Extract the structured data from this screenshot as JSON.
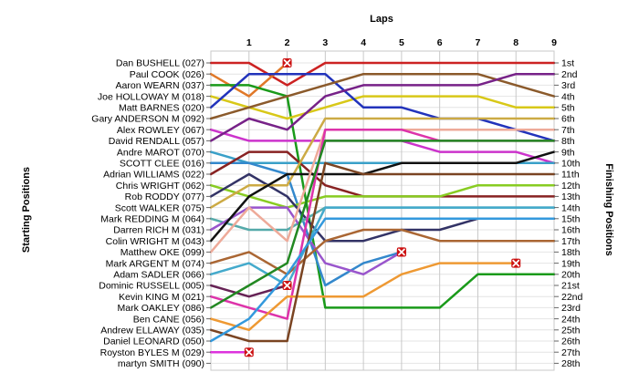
{
  "chart_data": {
    "type": "line",
    "title": "",
    "xlabel": "Laps",
    "ylabel_left": "Starting Positions",
    "ylabel_right": "Finishing Positions",
    "laps": [
      1,
      2,
      3,
      4,
      5,
      6,
      7,
      8,
      9
    ],
    "grid": true,
    "finish_labels": [
      "1st",
      "2nd",
      "3rd",
      "4th",
      "5th",
      "6th",
      "7th",
      "8th",
      "9th",
      "10th",
      "11th",
      "12th",
      "13th",
      "14th",
      "15th",
      "16th",
      "17th",
      "18th",
      "19th",
      "20th",
      "21st",
      "22nd",
      "23rd",
      "24th",
      "25th",
      "26th",
      "27th",
      "28th"
    ],
    "series": [
      {
        "name": "Dan BUSHELL (027)",
        "color": "#cc2222",
        "positions": [
          1,
          1,
          3,
          1,
          1,
          1,
          1,
          1,
          1,
          1
        ],
        "retired": false
      },
      {
        "name": "Paul COOK (026)",
        "color": "#e07828",
        "positions": [
          2,
          4,
          1
        ],
        "retired": true
      },
      {
        "name": "Aaron WEARN (037)",
        "color": "#1a9a1a",
        "positions": [
          3,
          3,
          4,
          23,
          23,
          23,
          23,
          20,
          20,
          20
        ],
        "retired": false
      },
      {
        "name": "Joe HOLLOWAY M (018)",
        "color": "#d8c818",
        "positions": [
          4,
          5,
          6,
          5,
          4,
          4,
          4,
          4,
          5,
          5
        ],
        "retired": false
      },
      {
        "name": "Matt BARNES (020)",
        "color": "#2233bb",
        "positions": [
          5,
          2,
          2,
          2,
          5,
          5,
          6,
          6,
          7,
          8
        ],
        "retired": false
      },
      {
        "name": "Gary ANDERSON M (092)",
        "color": "#8b5a2b",
        "positions": [
          6,
          5,
          4,
          3,
          2,
          2,
          2,
          2,
          3,
          4
        ],
        "retired": false
      },
      {
        "name": "Alex ROWLEY (067)",
        "color": "#cc33cc",
        "positions": [
          7,
          8,
          8,
          8,
          8,
          8,
          9,
          9,
          9,
          10
        ],
        "retired": false
      },
      {
        "name": "David RENDALL (057)",
        "color": "#772288",
        "positions": [
          8,
          6,
          7,
          4,
          3,
          3,
          3,
          3,
          2,
          2
        ],
        "retired": false
      },
      {
        "name": "Andre MAROT (070)",
        "color": "#3aa0c8",
        "positions": [
          9,
          10,
          10,
          10,
          10,
          10,
          10,
          10,
          10,
          10
        ],
        "retired": false
      },
      {
        "name": "SCOTT CLEE (016)",
        "color": "#3388cc",
        "positions": [
          10,
          10,
          11,
          21,
          19,
          18
        ],
        "retired": true
      },
      {
        "name": "Adrian WILLIAMS (022)",
        "color": "#882222",
        "positions": [
          11,
          9,
          9,
          12,
          13,
          13,
          13,
          13,
          13,
          13
        ],
        "retired": false
      },
      {
        "name": "Chris WRIGHT (062)",
        "color": "#88cc22",
        "positions": [
          12,
          13,
          14,
          13,
          13,
          13,
          13,
          12,
          12,
          12
        ],
        "retired": false
      },
      {
        "name": "Rob RODDY (077)",
        "color": "#333366",
        "positions": [
          13,
          11,
          13,
          17,
          17,
          16,
          16,
          15,
          15,
          15
        ],
        "retired": false
      },
      {
        "name": "Scott WALKER (075)",
        "color": "#ccaa44",
        "positions": [
          14,
          12,
          12,
          6,
          6,
          6,
          6,
          6,
          6,
          6
        ],
        "retired": false
      },
      {
        "name": "Mark REDDING M (064)",
        "color": "#55aaaa",
        "positions": [
          15,
          16,
          16,
          14,
          14,
          14,
          14,
          14,
          14,
          14
        ],
        "retired": false
      },
      {
        "name": "Darren RICH M (031)",
        "color": "#9955cc",
        "positions": [
          16,
          14,
          14,
          19,
          20,
          18
        ],
        "retired": true
      },
      {
        "name": "Colin WRIGHT M (043)",
        "color": "#111111",
        "positions": [
          17,
          13,
          11,
          11,
          11,
          10,
          10,
          10,
          10,
          9
        ],
        "retired": false
      },
      {
        "name": "Matthew OKE (099)",
        "color": "#eeaa99",
        "positions": [
          18,
          14,
          17,
          7,
          7,
          7,
          7,
          7,
          7,
          7
        ],
        "retired": false
      },
      {
        "name": "Mark ARGENT M (074)",
        "color": "#aa6633",
        "positions": [
          19,
          18,
          20,
          17,
          16,
          16,
          17,
          17,
          17,
          17
        ],
        "retired": false
      },
      {
        "name": "Adam SADLER (066)",
        "color": "#44aacc",
        "positions": [
          20,
          19,
          21,
          14,
          14,
          14,
          14,
          14,
          14,
          14
        ],
        "retired": false
      },
      {
        "name": "Dominic RUSSELL (005)",
        "color": "#662255",
        "positions": [
          21,
          22,
          21
        ],
        "retired": true
      },
      {
        "name": "Kevin KING M (021)",
        "color": "#dd33aa",
        "positions": [
          22,
          23,
          24,
          7,
          7,
          7,
          8,
          8,
          8,
          8
        ],
        "retired": false
      },
      {
        "name": "Mark OAKLEY (086)",
        "color": "#228822",
        "positions": [
          23,
          21,
          19,
          8,
          8,
          8,
          8,
          8,
          8,
          8
        ],
        "retired": false
      },
      {
        "name": "Ben CANE (056)",
        "color": "#ee9933",
        "positions": [
          24,
          25,
          22,
          22,
          22,
          20,
          19,
          19,
          19
        ],
        "retired": true
      },
      {
        "name": "Andrew ELLAWAY (035)",
        "color": "#7a4422",
        "positions": [
          25,
          26,
          26,
          10,
          11,
          11,
          11,
          11,
          11,
          11
        ],
        "retired": false
      },
      {
        "name": "Daniel LEONARD (050)",
        "color": "#3399dd",
        "positions": [
          26,
          24,
          20,
          15,
          15,
          15,
          15,
          15,
          15,
          15
        ],
        "retired": false
      },
      {
        "name": "Royston BYLES M (029)",
        "color": "#dd33dd",
        "positions": [
          27,
          27
        ],
        "retired": true
      },
      {
        "name": "martyn SMITH (090)",
        "color": "#999999",
        "positions": [
          28
        ],
        "retired": false
      }
    ]
  }
}
